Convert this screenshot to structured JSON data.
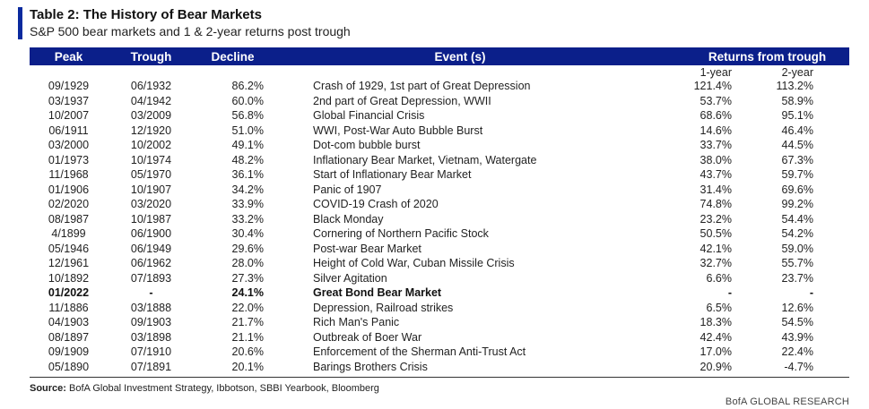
{
  "title": "Table 2: The History of Bear Markets",
  "subtitle": "S&P 500 bear markets and 1 & 2-year returns post trough",
  "headers": {
    "peak": "Peak",
    "trough": "Trough",
    "decline": "Decline",
    "event": "Event (s)",
    "returns": "Returns from trough",
    "y1": "1-year",
    "y2": "2-year"
  },
  "rows": [
    {
      "peak": "09/1929",
      "trough": "06/1932",
      "decline": "86.2%",
      "event": "Crash of 1929, 1st part of Great Depression",
      "y1": "121.4%",
      "y2": "113.2%"
    },
    {
      "peak": "03/1937",
      "trough": "04/1942",
      "decline": "60.0%",
      "event": "2nd part of Great Depression, WWII",
      "y1": "53.7%",
      "y2": "58.9%"
    },
    {
      "peak": "10/2007",
      "trough": "03/2009",
      "decline": "56.8%",
      "event": "Global Financial Crisis",
      "y1": "68.6%",
      "y2": "95.1%"
    },
    {
      "peak": "06/1911",
      "trough": "12/1920",
      "decline": "51.0%",
      "event": "WWI, Post-War Auto Bubble Burst",
      "y1": "14.6%",
      "y2": "46.4%"
    },
    {
      "peak": "03/2000",
      "trough": "10/2002",
      "decline": "49.1%",
      "event": "Dot-com bubble burst",
      "y1": "33.7%",
      "y2": "44.5%"
    },
    {
      "peak": "01/1973",
      "trough": "10/1974",
      "decline": "48.2%",
      "event": "Inflationary Bear Market, Vietnam, Watergate",
      "y1": "38.0%",
      "y2": "67.3%"
    },
    {
      "peak": "11/1968",
      "trough": "05/1970",
      "decline": "36.1%",
      "event": "Start of Inflationary Bear Market",
      "y1": "43.7%",
      "y2": "59.7%"
    },
    {
      "peak": "01/1906",
      "trough": "10/1907",
      "decline": "34.2%",
      "event": "Panic of 1907",
      "y1": "31.4%",
      "y2": "69.6%"
    },
    {
      "peak": "02/2020",
      "trough": "03/2020",
      "decline": "33.9%",
      "event": "COVID-19 Crash of 2020",
      "y1": "74.8%",
      "y2": "99.2%"
    },
    {
      "peak": "08/1987",
      "trough": "10/1987",
      "decline": "33.2%",
      "event": "Black Monday",
      "y1": "23.2%",
      "y2": "54.4%"
    },
    {
      "peak": "4/1899",
      "trough": "06/1900",
      "decline": "30.4%",
      "event": "Cornering of Northern Pacific Stock",
      "y1": "50.5%",
      "y2": "54.2%"
    },
    {
      "peak": "05/1946",
      "trough": "06/1949",
      "decline": "29.6%",
      "event": "Post-war Bear Market",
      "y1": "42.1%",
      "y2": "59.0%"
    },
    {
      "peak": "12/1961",
      "trough": "06/1962",
      "decline": "28.0%",
      "event": "Height of Cold War, Cuban Missile Crisis",
      "y1": "32.7%",
      "y2": "55.7%"
    },
    {
      "peak": "10/1892",
      "trough": "07/1893",
      "decline": "27.3%",
      "event": "Silver Agitation",
      "y1": "6.6%",
      "y2": "23.7%"
    },
    {
      "peak": "01/2022",
      "trough": "-",
      "decline": "24.1%",
      "event": "Great Bond Bear Market",
      "y1": "-",
      "y2": "-",
      "bold": true
    },
    {
      "peak": "11/1886",
      "trough": "03/1888",
      "decline": "22.0%",
      "event": "Depression, Railroad strikes",
      "y1": "6.5%",
      "y2": "12.6%"
    },
    {
      "peak": "04/1903",
      "trough": "09/1903",
      "decline": "21.7%",
      "event": "Rich Man's Panic",
      "y1": "18.3%",
      "y2": "54.5%"
    },
    {
      "peak": "08/1897",
      "trough": "03/1898",
      "decline": "21.1%",
      "event": "Outbreak of Boer War",
      "y1": "42.4%",
      "y2": "43.9%"
    },
    {
      "peak": "09/1909",
      "trough": "07/1910",
      "decline": "20.6%",
      "event": "Enforcement of the Sherman Anti-Trust Act",
      "y1": "17.0%",
      "y2": "22.4%"
    },
    {
      "peak": "05/1890",
      "trough": "07/1891",
      "decline": "20.1%",
      "event": "Barings Brothers Crisis",
      "y1": "20.9%",
      "y2": "-4.7%"
    }
  ],
  "source": {
    "label": "Source:",
    "text": "BofA Global Investment Strategy, Ibbotson, SBBI Yearbook, Bloomberg"
  },
  "brand": "BofA GLOBAL RESEARCH",
  "colors": {
    "header_bg": "#0b1f8a",
    "accent": "#0a2a9e"
  }
}
